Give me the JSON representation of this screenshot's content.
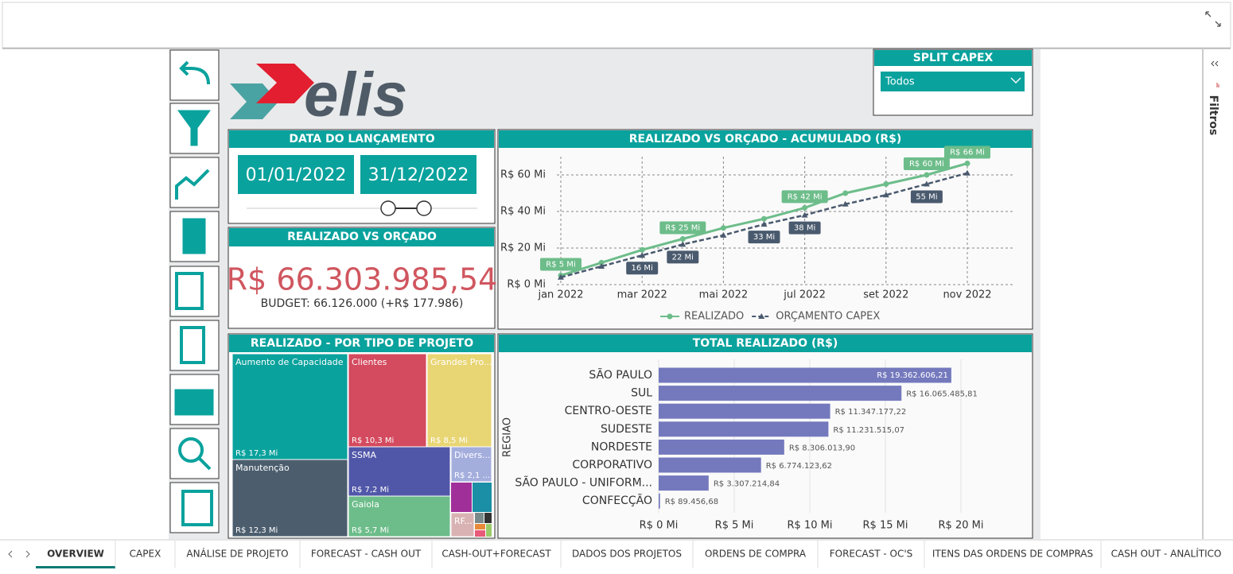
{
  "split_capex": {
    "title": "SPLIT CAPEX",
    "selected": "Todos"
  },
  "date_card": {
    "title": "DATA DO LANÇAMENTO",
    "start": "01/01/2022",
    "end": "31/12/2022"
  },
  "kpi": {
    "title": "REALIZADO VS ORÇADO",
    "value": "R$ 66.303.985,54",
    "budget": "BUDGET: 66.126.000 (+R$ 177.986)"
  },
  "logo": "elis",
  "side_pane": "Filtros",
  "chart_data": [
    {
      "type": "line",
      "title": "REALIZADO VS ORÇADO - ACUMULADO (R$)",
      "categories": [
        "jan 2022",
        null,
        "mar 2022",
        null,
        "mai 2022",
        null,
        "jul 2022",
        null,
        "set 2022",
        null,
        "nov 2022"
      ],
      "series": [
        {
          "name": "REALIZADO",
          "color": "#6dbd8a",
          "values": [
            5000000,
            12000000,
            19000000,
            25000000,
            31000000,
            36000000,
            42000000,
            50000000,
            55000000,
            60000000,
            66303985.54
          ],
          "value_labels": [
            "R$ 5 Mi",
            null,
            null,
            "R$ 25 Mi",
            null,
            null,
            "R$ 42 Mi",
            null,
            null,
            "R$ 60 Mi",
            "R$ 66 Mi"
          ]
        },
        {
          "name": "ORÇAMENTO CAPEX",
          "color": "#4a5a6e",
          "values": [
            4000000,
            10000000,
            16000000,
            22000000,
            27000000,
            33000000,
            38000000,
            44000000,
            49000000,
            55000000,
            61000000
          ],
          "value_labels": [
            null,
            null,
            "16 Mi",
            "22 Mi",
            null,
            "33 Mi",
            "38 Mi",
            null,
            null,
            "55 Mi",
            null
          ]
        }
      ],
      "ylim": [
        0,
        70000000
      ],
      "yticks": [
        {
          "value": 0,
          "label": "R$ 0 Mi"
        },
        {
          "value": 20000000,
          "label": "R$ 20 Mi"
        },
        {
          "value": 40000000,
          "label": "R$ 40 Mi"
        },
        {
          "value": 60000000,
          "label": "R$ 60 Mi"
        }
      ],
      "grid": true
    },
    {
      "type": "treemap",
      "title": "REALIZADO - POR TIPO DE PROJETO",
      "categories": [
        "Aumento de Capacidade",
        "Manutenção",
        "Clientes",
        "Grandes Pro...",
        "SSMA",
        "Gaiola",
        "Divers...",
        "RF..."
      ],
      "values": [
        17.3,
        12.3,
        10.3,
        8.5,
        7.2,
        5.7,
        2.1,
        1.0
      ],
      "value_labels": [
        "R$ 17,3 Mi",
        "R$ 12,3 Mi",
        "R$ 10,3 Mi",
        "R$ 8,5 Mi",
        "R$ 7,2 Mi",
        "R$ 5,7 Mi",
        "R$ 2,1 ...",
        null
      ],
      "colors": [
        "#0aa29d",
        "#4c5e6e",
        "#d44a5e",
        "#e8d574",
        "#5157a8",
        "#6dbd8a",
        "#a4aedd",
        "#d9b3b3"
      ]
    },
    {
      "type": "hbar",
      "title": "TOTAL REALIZADO (R$)",
      "y_label": "REGIAO",
      "categories": [
        "SÃO PAULO",
        "SUL",
        "CENTRO-OESTE",
        "SUDESTE",
        "NORDESTE",
        "CORPORATIVO",
        "SÃO PAULO - UNIFORM...",
        "CONFECÇÃO"
      ],
      "values": [
        19362606.21,
        16065485.81,
        11347177.22,
        11231515.07,
        8306013.9,
        6774123.62,
        3307214.84,
        89456.68
      ],
      "value_labels": [
        "R$ 19.362.606,21",
        "R$ 16.065.485,81",
        "R$ 11.347.177,22",
        "R$ 11.231.515,07",
        "R$ 8.306.013,90",
        "R$ 6.774.123,62",
        "R$ 3.307.214,84",
        "R$ 89.456,68"
      ],
      "color": "#7479bd",
      "xlim": [
        0,
        24000000
      ],
      "xticks": [
        {
          "value": 0,
          "label": "R$ 0 Mi"
        },
        {
          "value": 5000000,
          "label": "R$ 5 Mi"
        },
        {
          "value": 10000000,
          "label": "R$ 10 Mi"
        },
        {
          "value": 15000000,
          "label": "R$ 15 Mi"
        },
        {
          "value": 20000000,
          "label": "R$ 20 Mi"
        }
      ],
      "grid": true
    }
  ],
  "tabs": [
    "OVERVIEW",
    "CAPEX",
    "ANÁLISE DE PROJETO",
    "FORECAST - CASH OUT",
    "CASH-OUT+FORECAST",
    "DADOS DOS PROJETOS",
    "ORDENS DE COMPRA",
    "FORECAST - OC'S",
    "ITENS DAS ORDENS DE COMPRAS",
    "CASH OUT - ANALÍTICO"
  ],
  "active_tab": 0
}
